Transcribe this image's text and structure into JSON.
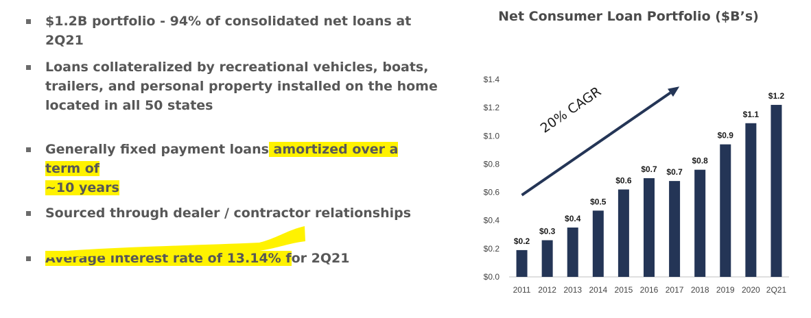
{
  "bullets": {
    "b1": "$1.2B portfolio - 94% of consolidated net loans at 2Q21",
    "b2": "Loans collateralized by recreational vehicles, boats, trailers, and personal property installed on the home located in all 50 states",
    "b3_pre": "Generally fixed payment loans",
    "b3_hl1": " amortized over a term of",
    "b3_hl2": "~10 years",
    "b4": "Sourced through dealer / contractor relationships",
    "b5_hl": "Average interest rate of 13.14% f",
    "b5_post": "or 2Q21"
  },
  "colors": {
    "highlight": "#fff200",
    "bar": "#243556",
    "bullet_text": "#575757"
  },
  "chart_data": {
    "type": "bar",
    "title": "Net Consumer Loan Portfolio ($B’s)",
    "categories": [
      "2011",
      "2012",
      "2013",
      "2014",
      "2015",
      "2016",
      "2017",
      "2018",
      "2019",
      "2020",
      "2Q21"
    ],
    "values": [
      0.19,
      0.26,
      0.35,
      0.47,
      0.62,
      0.7,
      0.68,
      0.76,
      0.94,
      1.09,
      1.22
    ],
    "data_labels": [
      "$0.2",
      "$0.3",
      "$0.4",
      "$0.5",
      "$0.6",
      "$0.7",
      "$0.7",
      "$0.8",
      "$0.9",
      "$1.1",
      "$1.2"
    ],
    "y_ticks": [
      0.0,
      0.2,
      0.4,
      0.6,
      0.8,
      1.0,
      1.2,
      1.4
    ],
    "y_tick_labels": [
      "$0.0",
      "$0.2",
      "$0.4",
      "$0.6",
      "$0.8",
      "$1.0",
      "$1.2",
      "$1.4"
    ],
    "ylim": [
      0,
      1.4
    ],
    "grid": false,
    "legend": "none",
    "annotation": "20% CAGR",
    "trend_arrow": {
      "from": [
        "2011",
        0.58
      ],
      "to": [
        "2Q21",
        1.35
      ]
    }
  }
}
